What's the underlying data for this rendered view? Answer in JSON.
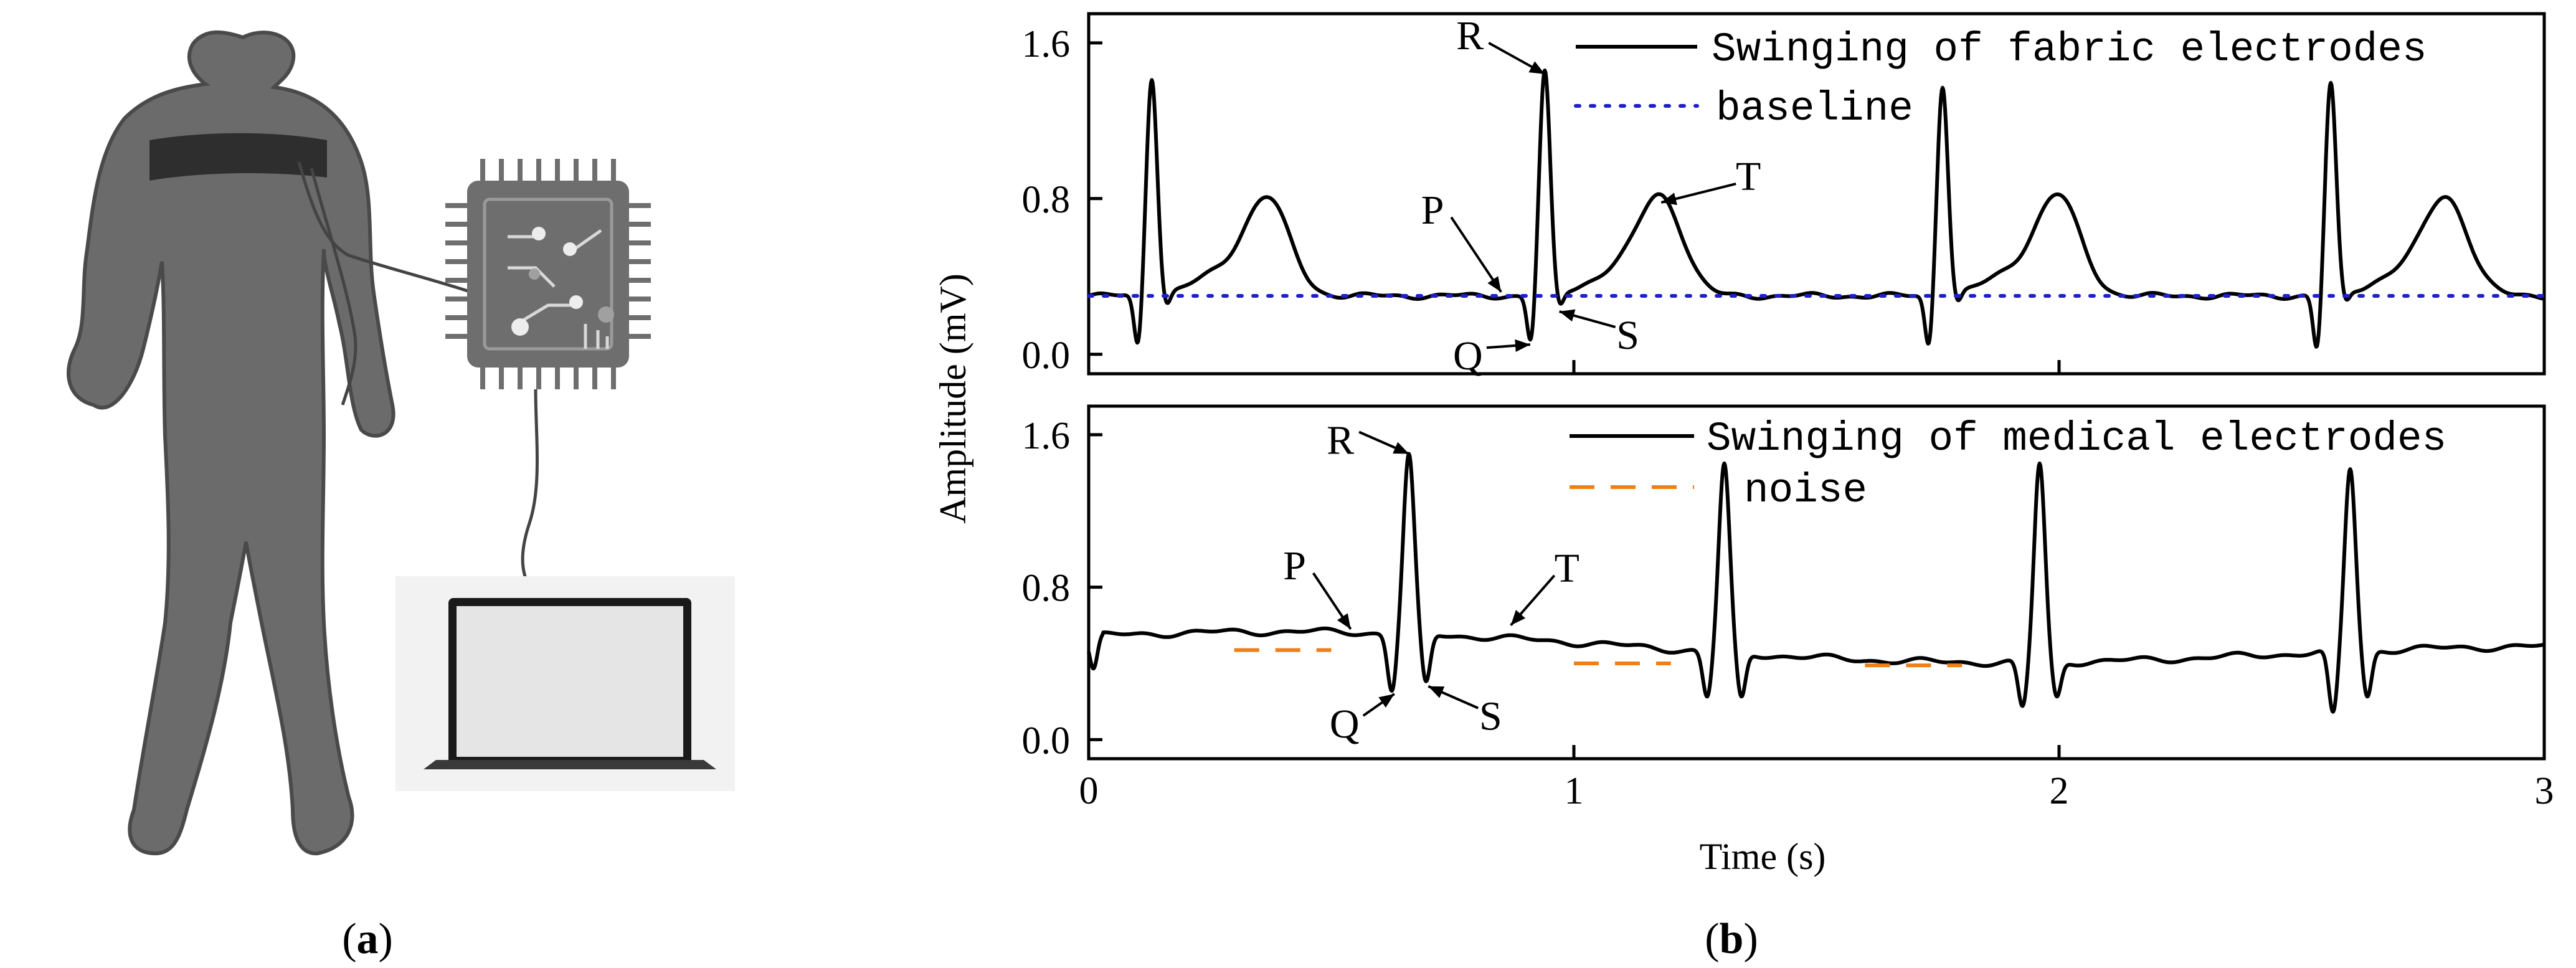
{
  "panel_labels": {
    "a": "a",
    "b": "b"
  },
  "illustration": {
    "description_icons": [
      "human-silhouette-icon",
      "chest-strap-electrode-icon",
      "microchip-icon",
      "laptop-icon"
    ]
  },
  "chart_data": [
    {
      "type": "line",
      "panel": "top",
      "title": "",
      "xlabel": "",
      "ylabel": "Amplitude (mV)",
      "xlim": [
        0,
        3
      ],
      "ylim": [
        -0.1,
        1.75
      ],
      "yticks": [
        0.0,
        0.8,
        1.6
      ],
      "ytick_labels": [
        "0.0",
        "0.8",
        "1.6"
      ],
      "xticks": [
        0,
        1,
        2,
        3
      ],
      "grid": false,
      "legend_position": "top-right",
      "series": [
        {
          "name": "Swinging of fabric electrodes",
          "color": "#000000",
          "style": "solid",
          "baseline_level": 0.3,
          "r_peak_times": [
            0.13,
            0.94,
            1.76,
            2.56
          ],
          "r_peak_values": [
            1.42,
            1.44,
            1.38,
            1.38
          ],
          "q_values": [
            0.02,
            0.04,
            0.02,
            0.0
          ],
          "s_values": [
            0.23,
            0.22,
            0.24,
            0.24
          ],
          "t_peak_offsets": [
            0.24,
            0.24,
            0.24,
            0.24
          ],
          "t_peak_values": [
            0.77,
            0.78,
            0.78,
            0.77
          ]
        },
        {
          "name": "baseline",
          "color": "#1f1fcc",
          "style": "dotted",
          "value": 0.3
        }
      ],
      "annotations": [
        {
          "text": "R",
          "target_time": 0.94,
          "target_value": 1.44
        },
        {
          "text": "T",
          "target_time": 1.18,
          "target_value": 0.78
        },
        {
          "text": "P",
          "target_time": 0.85,
          "target_value": 0.32
        },
        {
          "text": "Q",
          "target_time": 0.91,
          "target_value": 0.05
        },
        {
          "text": "S",
          "target_time": 0.97,
          "target_value": 0.22
        }
      ]
    },
    {
      "type": "line",
      "panel": "bottom",
      "title": "",
      "xlabel": "Time (s)",
      "ylabel": "Amplitude (mV)",
      "xlim": [
        0,
        3
      ],
      "ylim": [
        -0.1,
        1.75
      ],
      "yticks": [
        0.0,
        0.8,
        1.6
      ],
      "ytick_labels": [
        "0.0",
        "0.8",
        "1.6"
      ],
      "xticks": [
        0,
        1,
        2,
        3
      ],
      "xtick_labels": [
        "0",
        "1",
        "2",
        "3"
      ],
      "grid": false,
      "legend_position": "top-right",
      "series": [
        {
          "name": "Swinging of medical electrodes",
          "color": "#000000",
          "style": "solid",
          "r_peak_times": [
            0.66,
            1.31,
            1.96,
            2.6
          ],
          "r_peak_values": [
            1.5,
            1.45,
            1.45,
            1.42
          ],
          "q_values": [
            0.25,
            0.22,
            0.17,
            0.14
          ],
          "s_values": [
            0.3,
            0.22,
            0.22,
            0.22
          ]
        },
        {
          "name": "noise",
          "color": "#f07f16",
          "style": "dashed",
          "segments": [
            {
              "x": [
                0.3,
                0.5
              ],
              "y": 0.47
            },
            {
              "x": [
                1.0,
                1.2
              ],
              "y": 0.4
            },
            {
              "x": [
                1.6,
                1.8
              ],
              "y": 0.39
            }
          ]
        }
      ],
      "annotations": [
        {
          "text": "R",
          "target_time": 0.66,
          "target_value": 1.5
        },
        {
          "text": "P",
          "target_time": 0.54,
          "target_value": 0.58
        },
        {
          "text": "T",
          "target_time": 0.87,
          "target_value": 0.6
        },
        {
          "text": "Q",
          "target_time": 0.63,
          "target_value": 0.24
        },
        {
          "text": "S",
          "target_time": 0.7,
          "target_value": 0.28
        }
      ]
    }
  ]
}
